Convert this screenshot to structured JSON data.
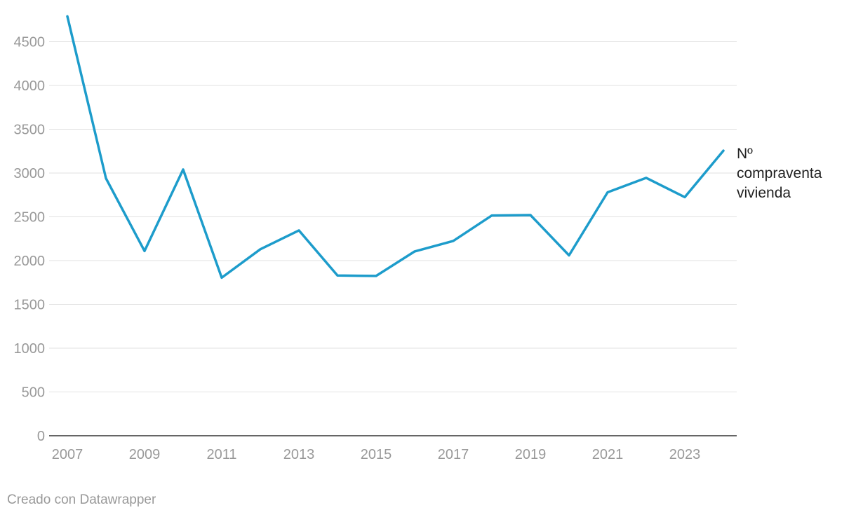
{
  "chart_data": {
    "type": "line",
    "x": [
      2007,
      2008,
      2009,
      2010,
      2011,
      2012,
      2013,
      2014,
      2015,
      2016,
      2017,
      2018,
      2019,
      2020,
      2021,
      2022,
      2023,
      2024
    ],
    "series": [
      {
        "name_lines": [
          "Nº",
          "compraventa",
          "vivienda"
        ],
        "values": [
          4790,
          2940,
          2110,
          3040,
          1805,
          2130,
          2345,
          1830,
          1825,
          2105,
          2225,
          2515,
          2520,
          2060,
          2780,
          2945,
          2725,
          3255
        ]
      }
    ],
    "x_ticks": [
      "2007",
      "2009",
      "2011",
      "2013",
      "2015",
      "2017",
      "2019",
      "2021",
      "2023"
    ],
    "y_ticks": [
      "0",
      "500",
      "1000",
      "1500",
      "2000",
      "2500",
      "3000",
      "3500",
      "4000",
      "4500"
    ],
    "xlim": [
      2007,
      2024
    ],
    "ylim": [
      0,
      4800
    ],
    "grid": true,
    "legend": "inline-right"
  },
  "colors": {
    "line": "#1d9ccb",
    "grid": "#e2e2e2",
    "axis": "#333333",
    "tick_label": "#999999",
    "series_label": "#222222"
  },
  "footer": {
    "credit": "Creado con Datawrapper"
  }
}
